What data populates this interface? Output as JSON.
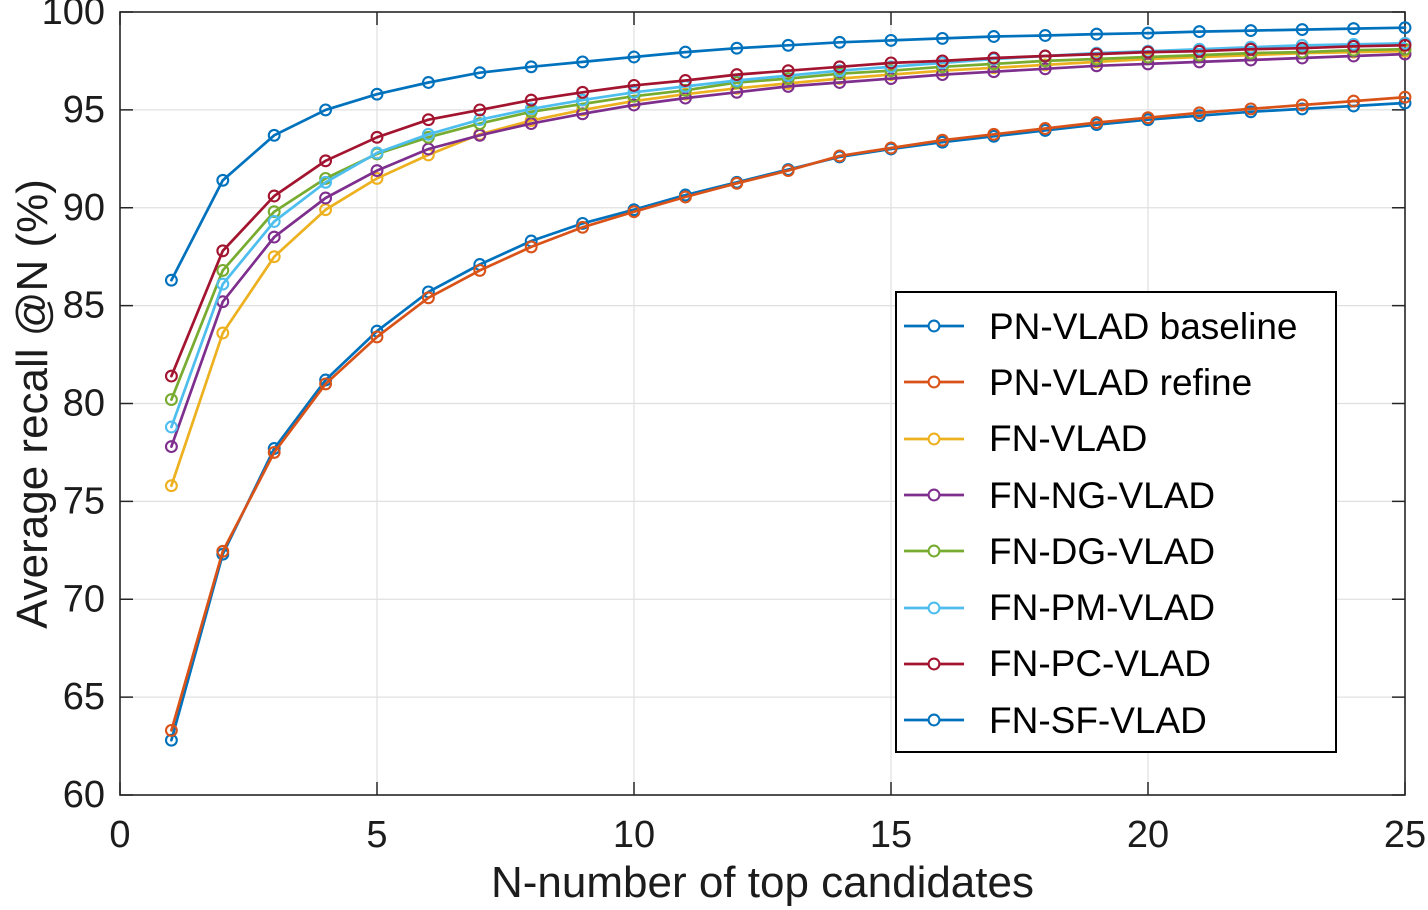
{
  "chart_data": {
    "type": "line",
    "title": "",
    "xlabel": "N-number of top candidates",
    "ylabel": "Average recall @N (%)",
    "xlim": [
      0,
      25
    ],
    "ylim": [
      60,
      100
    ],
    "xticks": [
      0,
      5,
      10,
      15,
      20,
      25
    ],
    "yticks": [
      60,
      65,
      70,
      75,
      80,
      85,
      90,
      95,
      100
    ],
    "grid": true,
    "legend_position": "inside-right-middle",
    "axis_color": "#262626",
    "grid_color": "#e0e0e0",
    "marker": "o",
    "x": [
      1,
      2,
      3,
      4,
      5,
      6,
      7,
      8,
      9,
      10,
      11,
      12,
      13,
      14,
      15,
      16,
      17,
      18,
      19,
      20,
      21,
      22,
      23,
      24,
      25
    ],
    "series": [
      {
        "name": "PN-VLAD baseline",
        "color": "#0072BD",
        "values": [
          62.8,
          72.3,
          77.7,
          81.2,
          83.7,
          85.7,
          87.1,
          88.3,
          89.2,
          89.9,
          90.65,
          91.3,
          91.95,
          92.6,
          93.0,
          93.35,
          93.65,
          93.95,
          94.25,
          94.5,
          94.7,
          94.9,
          95.05,
          95.2,
          95.35
        ]
      },
      {
        "name": "PN-VLAD refine",
        "color": "#D95319",
        "values": [
          63.3,
          72.45,
          77.5,
          81.0,
          83.4,
          85.4,
          86.8,
          88.0,
          89.0,
          89.8,
          90.55,
          91.25,
          91.9,
          92.65,
          93.05,
          93.45,
          93.75,
          94.05,
          94.35,
          94.6,
          94.85,
          95.05,
          95.25,
          95.45,
          95.65
        ]
      },
      {
        "name": "FN-VLAD",
        "color": "#EDB120",
        "values": [
          75.8,
          83.6,
          87.5,
          89.9,
          91.5,
          92.7,
          93.75,
          94.45,
          95.0,
          95.45,
          95.8,
          96.1,
          96.35,
          96.6,
          96.8,
          97.0,
          97.15,
          97.3,
          97.45,
          97.6,
          97.7,
          97.8,
          97.9,
          97.95,
          98.0
        ]
      },
      {
        "name": "FN-NG-VLAD",
        "color": "#7E2F8E",
        "values": [
          77.8,
          85.2,
          88.5,
          90.5,
          91.9,
          93.0,
          93.7,
          94.3,
          94.8,
          95.25,
          95.6,
          95.9,
          96.2,
          96.4,
          96.6,
          96.8,
          96.95,
          97.1,
          97.25,
          97.35,
          97.45,
          97.55,
          97.65,
          97.75,
          97.85
        ]
      },
      {
        "name": "FN-DG-VLAD",
        "color": "#77AC30",
        "values": [
          80.2,
          86.8,
          89.8,
          91.5,
          92.75,
          93.6,
          94.3,
          94.9,
          95.3,
          95.7,
          96.0,
          96.4,
          96.6,
          96.85,
          97.0,
          97.2,
          97.35,
          97.5,
          97.6,
          97.7,
          97.8,
          97.9,
          97.95,
          98.05,
          98.1
        ]
      },
      {
        "name": "FN-PM-VLAD",
        "color": "#4DBEEE",
        "values": [
          78.8,
          86.1,
          89.3,
          91.3,
          92.8,
          93.75,
          94.5,
          95.05,
          95.5,
          95.9,
          96.2,
          96.5,
          96.75,
          97.0,
          97.2,
          97.4,
          97.6,
          97.75,
          97.9,
          98.0,
          98.1,
          98.2,
          98.3,
          98.35,
          98.4
        ]
      },
      {
        "name": "FN-PC-VLAD",
        "color": "#A2142F",
        "values": [
          81.4,
          87.8,
          90.6,
          92.4,
          93.6,
          94.5,
          95.0,
          95.5,
          95.9,
          96.25,
          96.5,
          96.8,
          97.0,
          97.2,
          97.4,
          97.5,
          97.65,
          97.75,
          97.85,
          97.95,
          98.0,
          98.1,
          98.15,
          98.25,
          98.3
        ]
      },
      {
        "name": "FN-SF-VLAD",
        "color": "#0072BD",
        "values": [
          86.3,
          91.4,
          93.7,
          95.0,
          95.8,
          96.4,
          96.9,
          97.2,
          97.45,
          97.7,
          97.95,
          98.15,
          98.3,
          98.45,
          98.55,
          98.65,
          98.75,
          98.8,
          98.87,
          98.92,
          99.0,
          99.05,
          99.1,
          99.15,
          99.2
        ]
      }
    ]
  }
}
